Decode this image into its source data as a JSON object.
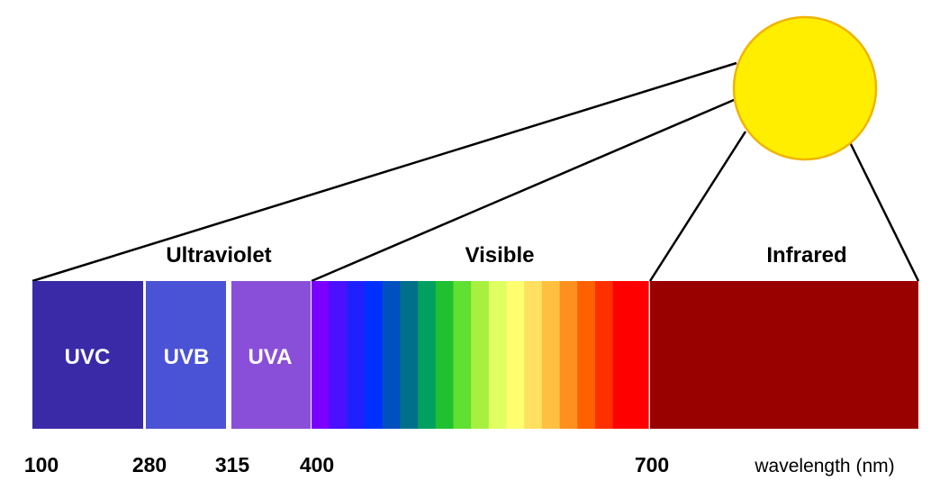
{
  "regions": {
    "ultraviolet": "Ultraviolet",
    "visible": "Visible",
    "infrared": "Infrared"
  },
  "bands": {
    "uvc": "UVC",
    "uvb": "UVB",
    "uva": "UVA"
  },
  "ticks": [
    "100",
    "280",
    "315",
    "400",
    "700"
  ],
  "unit_label": "wavelength (nm)",
  "colors": {
    "uvc": "#3a2aa8",
    "uvb": "#4a52d6",
    "uva": "#8a4fd8",
    "infrared": "#990000",
    "sun_fill": "#ffee00",
    "sun_stroke": "#f0b400",
    "visible_gradient": [
      "#7a00ff",
      "#4a10ff",
      "#2020ff",
      "#0030ff",
      "#0050c0",
      "#00708a",
      "#00a060",
      "#20c030",
      "#60e030",
      "#a8f040",
      "#e0ff60",
      "#ffff70",
      "#ffe060",
      "#ffc040",
      "#ff9020",
      "#ff6000",
      "#ff3000",
      "#ff0000",
      "#ff0000"
    ]
  }
}
